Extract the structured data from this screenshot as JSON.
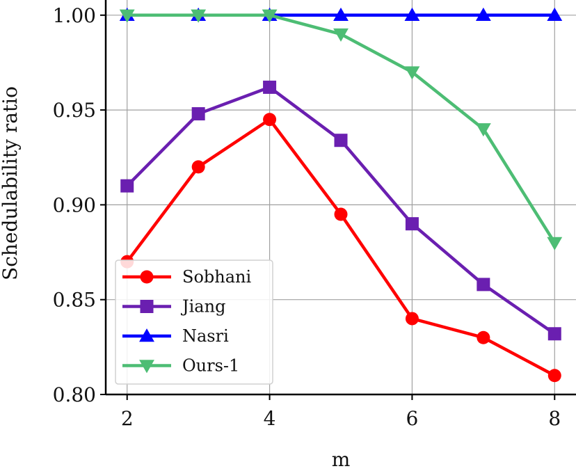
{
  "chart_data": {
    "type": "line",
    "xlabel": "m",
    "ylabel": "Schedulability ratio",
    "x": [
      2,
      3,
      4,
      5,
      6,
      7,
      8
    ],
    "xticks": [
      2,
      4,
      6,
      8
    ],
    "xtick_labels": [
      "2",
      "4",
      "6",
      "8"
    ],
    "xlim": [
      1.7,
      8.3
    ],
    "yticks": [
      0.8,
      0.85,
      0.9,
      0.95,
      1.0
    ],
    "ytick_labels": [
      "0.80",
      "0.85",
      "0.90",
      "0.95",
      "1.00"
    ],
    "ylim": [
      0.8,
      1.008
    ],
    "grid": true,
    "legend_position": "lower-left",
    "series": [
      {
        "name": "Sobhani",
        "color": "#ff0000",
        "marker": "circle",
        "values": [
          0.87,
          0.92,
          0.945,
          0.895,
          0.84,
          0.83,
          0.81
        ]
      },
      {
        "name": "Jiang",
        "color": "#6a1fb0",
        "marker": "square",
        "values": [
          0.91,
          0.948,
          0.962,
          0.934,
          0.89,
          0.858,
          0.832
        ]
      },
      {
        "name": "Nasri",
        "color": "#0000ff",
        "marker": "triangle-up",
        "values": [
          1.0,
          1.0,
          1.0,
          1.0,
          1.0,
          1.0,
          1.0
        ]
      },
      {
        "name": "Ours-1",
        "color": "#4dbd74",
        "marker": "triangle-down",
        "values": [
          1.0,
          1.0,
          1.0,
          0.99,
          0.97,
          0.94,
          0.88
        ]
      }
    ]
  }
}
